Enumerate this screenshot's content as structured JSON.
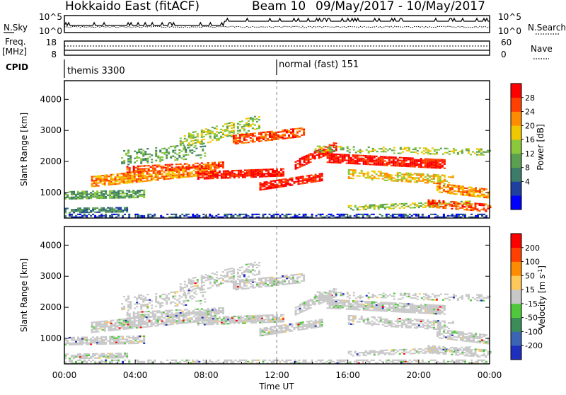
{
  "header": {
    "title": "Hokkaido East (fitACF)",
    "beam_label": "Beam 10",
    "date_range": "09/May/2017 - 10/May/2017"
  },
  "chart_data": [
    {
      "name": "nsky-nsearch",
      "type": "line",
      "left_label": "N.Sky",
      "left_ticks": [
        "10^5",
        "10^0"
      ],
      "right_label": "N.Search",
      "right_ticks": [
        "10^5",
        "10^0"
      ]
    },
    {
      "name": "freq-nave",
      "type": "line",
      "left_label_1": "Freq.",
      "left_label_2": "[MHz]",
      "left_ticks": [
        "18",
        "8"
      ],
      "right_label": "Nave",
      "right_ticks": [
        "60",
        "0"
      ]
    },
    {
      "name": "cpid",
      "type": "table",
      "label": "CPID",
      "entries": [
        {
          "text": "themis 3300",
          "start_hour": 0
        },
        {
          "text": "normal (fast) 151",
          "start_hour": 12
        }
      ]
    },
    {
      "name": "power",
      "type": "heatmap",
      "ylabel": "Slant Range [km]",
      "yticks": [
        1000,
        2000,
        3000,
        4000
      ],
      "ylim": [
        180,
        4600
      ],
      "xlim": [
        0,
        24
      ],
      "colorbar_label": "Power [dB]",
      "colorbar_ticks": [
        "28",
        "24",
        "20",
        "16",
        "12",
        "8",
        "4"
      ],
      "colors": [
        "#0000ff",
        "#2040a0",
        "#3c7c68",
        "#5aa050",
        "#8cc83c",
        "#f0c800",
        "#ff8c00",
        "#ff4000",
        "#ff0000"
      ]
    },
    {
      "name": "velocity",
      "type": "heatmap",
      "ylabel": "Slant Range [km]",
      "yticks": [
        1000,
        2000,
        3000,
        4000
      ],
      "ylim": [
        180,
        4600
      ],
      "xlim": [
        0,
        24
      ],
      "xlabel": "Time UT",
      "xticks": [
        "00:00",
        "04:00",
        "08:00",
        "12:00",
        "16:00",
        "20:00",
        "00:00"
      ],
      "colorbar_label": "Velocity [m s",
      "colorbar_sup": "-1",
      "colorbar_label_end": "]",
      "colorbar_ticks": [
        "200",
        "100",
        "50",
        "15",
        "-15",
        "-50",
        "-100",
        "-200"
      ],
      "colors": [
        "#1e2ebe",
        "#3c64b4",
        "#3c8c5a",
        "#50c83c",
        "#c8c8c8",
        "#ffc85a",
        "#ff8c00",
        "#ff4000",
        "#ff0000"
      ]
    }
  ]
}
